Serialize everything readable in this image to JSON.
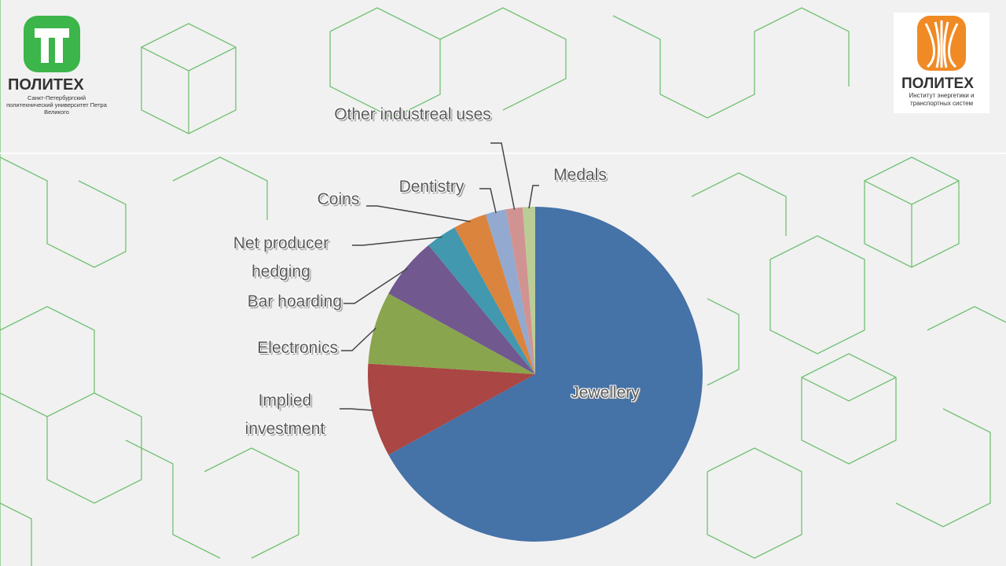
{
  "chart_data": {
    "type": "pie",
    "categories": [
      "Jewellery",
      "Implied investment",
      "Electronics",
      "Bar hoarding",
      "Net producer hedging",
      "Coins",
      "Dentistry",
      "Other industreal uses",
      "Medals"
    ],
    "values": [
      67,
      9,
      7,
      6,
      3,
      3.2,
      2,
      1.6,
      1.2
    ],
    "colors": [
      "#4572a7",
      "#aa4643",
      "#89a54e",
      "#71588f",
      "#4198af",
      "#db843d",
      "#93a9cf",
      "#d19392",
      "#b9cd96"
    ]
  },
  "logos": {
    "left": {
      "name": "ПОЛИТЕХ",
      "subtitle": "Санкт-Петербургский политехнический университет Петра Великого"
    },
    "right": {
      "name": "ПОЛИТЕХ",
      "subtitle": "Институт энергетики и транспортных систем"
    }
  }
}
